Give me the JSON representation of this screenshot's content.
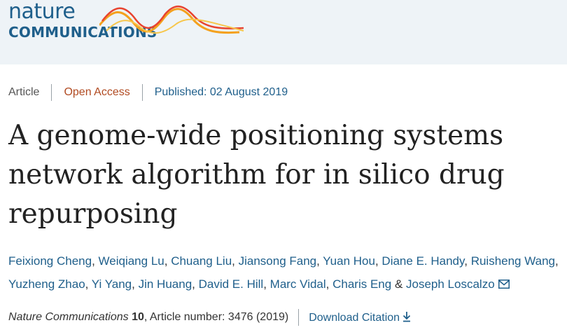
{
  "header": {
    "logo_line1": "nature",
    "logo_line2": "COMMUNICATIONS",
    "colors": {
      "background": "#eef3f7",
      "brand": "#1f5f8b",
      "wave_red": "#e8432f",
      "wave_orange": "#f4a11e"
    }
  },
  "meta": {
    "type": "Article",
    "access": "Open Access",
    "published": "Published: 02 August 2019"
  },
  "title": "A genome-wide positioning systems network algorithm for in silico drug repurposing",
  "authors": [
    "Feixiong Cheng",
    "Weiqiang Lu",
    "Chuang Liu",
    "Jiansong Fang",
    "Yuan Hou",
    "Diane E. Handy",
    "Ruisheng Wang",
    "Yuzheng Zhao",
    "Yi Yang",
    "Jin Huang",
    "David E. Hill",
    "Marc Vidal",
    "Charis Eng",
    "Joseph Loscalzo"
  ],
  "authors_joiner": "&",
  "citation": {
    "journal": "Nature Communications",
    "volume": "10",
    "article_number": ", Article number: 3476 (2019)",
    "download": "Download Citation"
  },
  "icons": {
    "mail": "mail-icon",
    "download": "download-icon"
  }
}
